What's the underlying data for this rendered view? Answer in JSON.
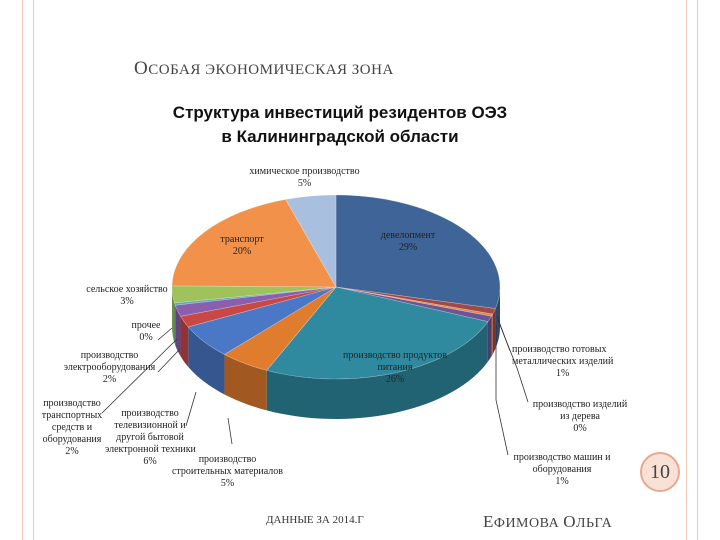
{
  "slide": {
    "title_first": "О",
    "title_rest": "СОБАЯ ЭКОНОМИЧЕСКАЯ ЗОНА",
    "page_number": "10",
    "footer_left": "ДАННЫЕ ЗА 2014.Г",
    "author_first1": "Е",
    "author_rest1": "ФИМОВА ",
    "author_first2": "О",
    "author_rest2": "ЛЬГА"
  },
  "chart_data": {
    "type": "pie",
    "title_line1": "Структура инвестиций резидентов ОЭЗ",
    "title_line2": "в Калининградской области",
    "slices": [
      {
        "name": "девелопмент",
        "label": "29%",
        "value": 29,
        "color": "#3f6497"
      },
      {
        "name": "производство готовых металлических изделий",
        "label": "1%",
        "value": 1,
        "color": "#a04a48"
      },
      {
        "name": "производство изделий из дерева",
        "label": "0%",
        "value": 0.4,
        "color": "#e8874a"
      },
      {
        "name": "производство машин и оборудования",
        "label": "1%",
        "value": 1,
        "color": "#6a5597"
      },
      {
        "name": "производство продуктов питания",
        "label": "26%",
        "value": 26,
        "color": "#2f8aa0"
      },
      {
        "name": "производство строительных материалов",
        "label": "5%",
        "value": 5,
        "color": "#e07c2e"
      },
      {
        "name": "производство телевизионной и другой бытовой электронной техники",
        "label": "6%",
        "value": 6,
        "color": "#4a78c6"
      },
      {
        "name": "производство транспортных средств и оборудования",
        "label": "2%",
        "value": 2,
        "color": "#c74845"
      },
      {
        "name": "производство электрооборудования",
        "label": "2%",
        "value": 2,
        "color": "#8a5fae"
      },
      {
        "name": "прочее",
        "label": "0%",
        "value": 0.4,
        "color": "#5aa9bd"
      },
      {
        "name": "сельское хозяйство",
        "label": "3%",
        "value": 3,
        "color": "#9fc25b"
      },
      {
        "name": "транспорт",
        "label": "20%",
        "value": 20,
        "color": "#f2924a"
      },
      {
        "name": "химическое производство",
        "label": "5%",
        "value": 5,
        "color": "#a9bfdf"
      }
    ],
    "label_text": {
      "dev": "девелопмент",
      "metal_1": "производство готовых",
      "metal_2": "металлических изделий",
      "wood_1": "производство изделий",
      "wood_2": "из дерева",
      "mach_1": "производство машин и",
      "mach_2": "оборудования",
      "food_1": "производство продуктов",
      "food_2": "питания",
      "constr_1": "производство",
      "constr_2": "строительных материалов",
      "tv_1": "производство",
      "tv_2": "телевизионной и",
      "tv_3": "другой бытовой",
      "tv_4": "электронной техники",
      "trans_1": "производство",
      "trans_2": "транспортных",
      "trans_3": "средств и",
      "trans_4": "оборудования",
      "elec_1": "производство",
      "elec_2": "электрооборудования",
      "other": "прочее",
      "agri": "сельское хозяйство",
      "transport": "транспорт",
      "chem": "химическое производство"
    }
  }
}
